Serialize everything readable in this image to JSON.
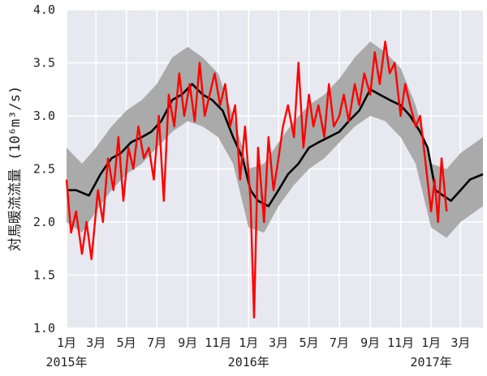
{
  "chart_data": {
    "type": "line",
    "ylabel": "対馬暖流流量 (10⁶m³/s)",
    "ylim": [
      1.0,
      4.0
    ],
    "y_ticks": [
      "1.0",
      "1.5",
      "2.0",
      "2.5",
      "3.0",
      "3.5",
      "4.0"
    ],
    "x_range": [
      "2015-01-01",
      "2017-04-15"
    ],
    "x_ticks": [
      "1月",
      "3月",
      "5月",
      "7月",
      "9月",
      "11月",
      "1月",
      "3月",
      "5月",
      "7月",
      "9月",
      "11月",
      "1月",
      "3月"
    ],
    "x_tick_dates": [
      "2015-01-01",
      "2015-03-01",
      "2015-05-01",
      "2015-07-01",
      "2015-09-01",
      "2015-11-01",
      "2016-01-01",
      "2016-03-01",
      "2016-05-01",
      "2016-07-01",
      "2016-09-01",
      "2016-11-01",
      "2017-01-01",
      "2017-03-01"
    ],
    "year_labels": [
      {
        "label": "2015年",
        "date": "2015-01-01"
      },
      {
        "label": "2016年",
        "date": "2016-01-01"
      },
      {
        "label": "2017年",
        "date": "2017-01-01"
      }
    ],
    "background": "#e8e8f0",
    "grid": true,
    "band": {
      "color": "#aaaaaa",
      "x": [
        "2015-01-01",
        "2015-02-01",
        "2015-03-01",
        "2015-04-01",
        "2015-05-01",
        "2015-06-01",
        "2015-07-01",
        "2015-08-01",
        "2015-09-01",
        "2015-10-01",
        "2015-11-01",
        "2015-12-01",
        "2016-01-01",
        "2016-02-01",
        "2016-03-01",
        "2016-04-01",
        "2016-05-01",
        "2016-06-01",
        "2016-07-01",
        "2016-08-01",
        "2016-09-01",
        "2016-10-01",
        "2016-11-01",
        "2016-12-01",
        "2017-01-01",
        "2017-02-01",
        "2017-03-01",
        "2017-04-15"
      ],
      "lower": [
        2.0,
        1.9,
        2.1,
        2.3,
        2.45,
        2.55,
        2.7,
        2.85,
        2.95,
        2.9,
        2.8,
        2.55,
        1.95,
        1.9,
        2.15,
        2.35,
        2.5,
        2.6,
        2.75,
        2.9,
        3.0,
        2.95,
        2.8,
        2.55,
        1.95,
        1.85,
        2.0,
        2.15
      ],
      "upper": [
        2.7,
        2.55,
        2.7,
        2.9,
        3.05,
        3.15,
        3.3,
        3.55,
        3.65,
        3.55,
        3.4,
        3.0,
        2.5,
        2.55,
        2.75,
        2.95,
        3.1,
        3.2,
        3.35,
        3.55,
        3.7,
        3.6,
        3.45,
        3.1,
        2.55,
        2.5,
        2.65,
        2.8
      ]
    },
    "series": [
      {
        "color": "#000000",
        "x": [
          "2015-01-01",
          "2015-01-20",
          "2015-02-15",
          "2015-03-10",
          "2015-04-01",
          "2015-04-20",
          "2015-05-10",
          "2015-06-01",
          "2015-06-20",
          "2015-07-10",
          "2015-08-01",
          "2015-08-20",
          "2015-09-10",
          "2015-10-01",
          "2015-10-20",
          "2015-11-10",
          "2015-12-01",
          "2015-12-20",
          "2016-01-05",
          "2016-01-20",
          "2016-02-10",
          "2016-03-01",
          "2016-03-20",
          "2016-04-10",
          "2016-05-01",
          "2016-05-20",
          "2016-06-10",
          "2016-07-01",
          "2016-07-20",
          "2016-08-10",
          "2016-09-01",
          "2016-09-20",
          "2016-10-10",
          "2016-11-01",
          "2016-11-20",
          "2016-12-10",
          "2016-12-25",
          "2017-01-10",
          "2017-01-25",
          "2017-02-10",
          "2017-03-01",
          "2017-03-20",
          "2017-04-15"
        ],
        "values": [
          2.3,
          2.3,
          2.25,
          2.45,
          2.6,
          2.65,
          2.75,
          2.8,
          2.85,
          2.95,
          3.15,
          3.2,
          3.3,
          3.2,
          3.15,
          3.05,
          2.8,
          2.6,
          2.3,
          2.2,
          2.15,
          2.3,
          2.45,
          2.55,
          2.7,
          2.75,
          2.8,
          2.85,
          2.95,
          3.05,
          3.25,
          3.2,
          3.15,
          3.1,
          3.0,
          2.85,
          2.7,
          2.3,
          2.25,
          2.2,
          2.3,
          2.4,
          2.45
        ]
      },
      {
        "color": "#ff0000",
        "x": [
          "2015-01-01",
          "2015-01-10",
          "2015-01-20",
          "2015-02-01",
          "2015-02-10",
          "2015-02-20",
          "2015-03-05",
          "2015-03-15",
          "2015-03-25",
          "2015-04-05",
          "2015-04-15",
          "2015-04-25",
          "2015-05-05",
          "2015-05-15",
          "2015-05-25",
          "2015-06-05",
          "2015-06-15",
          "2015-06-25",
          "2015-07-05",
          "2015-07-15",
          "2015-07-25",
          "2015-08-05",
          "2015-08-15",
          "2015-08-25",
          "2015-09-05",
          "2015-09-15",
          "2015-09-25",
          "2015-10-05",
          "2015-10-15",
          "2015-10-25",
          "2015-11-05",
          "2015-11-15",
          "2015-11-25",
          "2015-12-05",
          "2015-12-15",
          "2015-12-25",
          "2016-01-05",
          "2016-01-12",
          "2016-01-20",
          "2016-02-01",
          "2016-02-10",
          "2016-02-20",
          "2016-03-01",
          "2016-03-10",
          "2016-03-20",
          "2016-04-01",
          "2016-04-10",
          "2016-04-20",
          "2016-05-01",
          "2016-05-10",
          "2016-05-20",
          "2016-06-01",
          "2016-06-10",
          "2016-06-20",
          "2016-07-01",
          "2016-07-10",
          "2016-07-20",
          "2016-08-01",
          "2016-08-10",
          "2016-08-20",
          "2016-09-01",
          "2016-09-10",
          "2016-09-20",
          "2016-10-01",
          "2016-10-10",
          "2016-10-20",
          "2016-11-01",
          "2016-11-10",
          "2016-11-20",
          "2016-12-01",
          "2016-12-10",
          "2016-12-20",
          "2017-01-01",
          "2017-01-08",
          "2017-01-15",
          "2017-01-22",
          "2017-02-01"
        ],
        "values": [
          2.4,
          1.9,
          2.1,
          1.7,
          2.0,
          1.65,
          2.3,
          2.0,
          2.6,
          2.3,
          2.8,
          2.2,
          2.7,
          2.5,
          2.9,
          2.6,
          2.7,
          2.4,
          3.0,
          2.2,
          3.2,
          2.9,
          3.4,
          3.0,
          3.3,
          2.95,
          3.5,
          3.0,
          3.2,
          3.4,
          3.1,
          3.3,
          2.9,
          3.1,
          2.4,
          2.9,
          2.2,
          1.1,
          2.7,
          2.0,
          2.8,
          2.3,
          2.6,
          2.9,
          3.1,
          2.8,
          3.5,
          2.7,
          3.2,
          2.9,
          3.1,
          2.8,
          3.3,
          2.9,
          3.0,
          3.2,
          2.95,
          3.3,
          3.1,
          3.4,
          3.2,
          3.6,
          3.3,
          3.7,
          3.4,
          3.5,
          3.0,
          3.3,
          3.1,
          2.9,
          3.0,
          2.6,
          2.1,
          2.4,
          2.0,
          2.6,
          2.1
        ]
      }
    ]
  }
}
